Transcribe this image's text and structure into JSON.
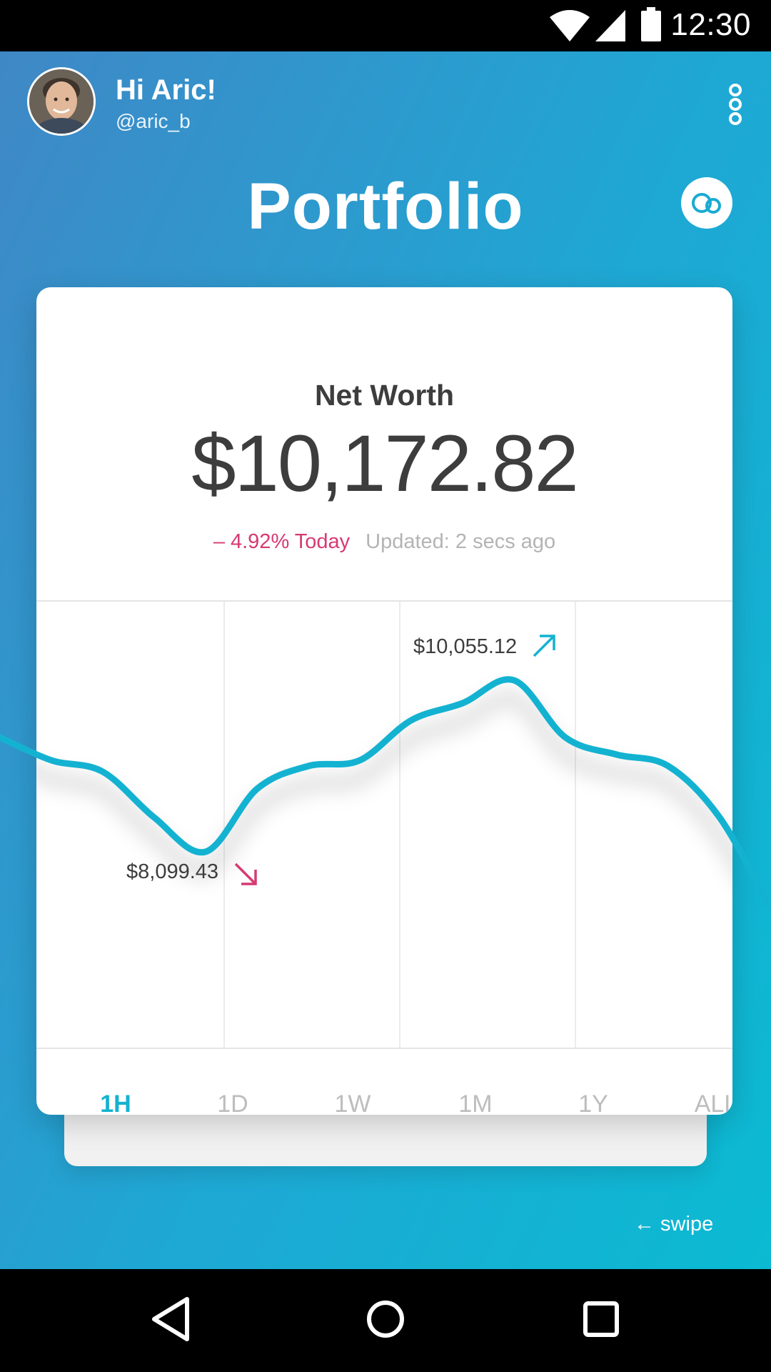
{
  "status_bar": {
    "time": "12:30",
    "icons": [
      "wifi-icon",
      "cell-signal-icon",
      "battery-icon"
    ]
  },
  "header": {
    "greeting": "Hi Aric!",
    "handle": "@aric_b",
    "menu_icon": "more-vertical-icon"
  },
  "title": "Portfolio",
  "toggle_icon": "overlap-circles-icon",
  "card": {
    "title": "Net Worth",
    "value": "$10,172.82",
    "change": "– 4.92% Today",
    "updated": "Updated: 2 secs ago"
  },
  "chart_data": {
    "type": "line",
    "series": [
      {
        "points": [
          8900,
          8700,
          8600,
          8200,
          7900,
          8450,
          8650,
          8700,
          9050,
          9200,
          9400,
          8900,
          8750,
          8650,
          8200,
          7400
        ]
      }
    ],
    "annotations": [
      {
        "label": "$10,055.12",
        "direction": "up",
        "color": "#14b2d1"
      },
      {
        "label": "$8,099.43",
        "direction": "down",
        "color": "#d63a72"
      }
    ],
    "line_color": "#14b2d1",
    "grid": true
  },
  "tabs": [
    {
      "label": "1H",
      "active": true
    },
    {
      "label": "1D",
      "active": false
    },
    {
      "label": "1W",
      "active": false
    },
    {
      "label": "1M",
      "active": false
    },
    {
      "label": "1Y",
      "active": false
    },
    {
      "label": "ALL",
      "active": false
    }
  ],
  "swipe_hint": "← swipe",
  "nav_bar": {
    "icons": [
      "back-icon",
      "home-icon",
      "recents-icon"
    ]
  },
  "colors": {
    "accent": "#14b2d1",
    "negative": "#d63a72",
    "gradient_start": "#3f88c6",
    "gradient_end": "#0bbad2"
  }
}
